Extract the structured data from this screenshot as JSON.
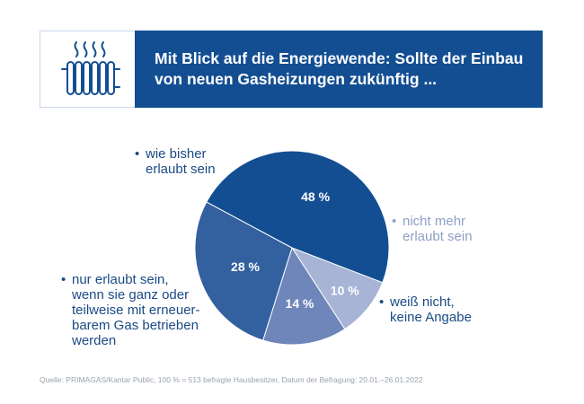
{
  "header": {
    "title_lines": [
      "Mit Blick auf die Energiewende: Sollte der Einbau",
      "von neuen Gasheizungen zukünftig ..."
    ],
    "icon": "radiator-icon"
  },
  "chart_data": {
    "type": "pie",
    "unit": "%",
    "slices": [
      {
        "label_lines": [
          "wie bisher",
          "erlaubt sein"
        ],
        "value": 48,
        "value_label": "48 %",
        "color": "#134e92"
      },
      {
        "label_lines": [
          "nicht mehr",
          "erlaubt sein"
        ],
        "value": 10,
        "value_label": "10 %",
        "color": "#a7b4d6"
      },
      {
        "label_lines": [
          "weiß nicht,",
          "keine Angabe"
        ],
        "value": 14,
        "value_label": "14 %",
        "color": "#6e86ba"
      },
      {
        "label_lines": [
          "nur erlaubt sein,",
          "wenn sie ganz oder",
          "teilweise mit erneuer-",
          "barem Gas betrieben",
          "werden"
        ],
        "value": 28,
        "value_label": "28 %",
        "color": "#33609f"
      }
    ],
    "bullet": "•"
  },
  "footer": {
    "source": "Quelle: PRIMAGAS/Kantar Public, 100 % = 513 befragte Hausbesitzer, Datum der Befragung: 20.01.–26.01.2022"
  }
}
